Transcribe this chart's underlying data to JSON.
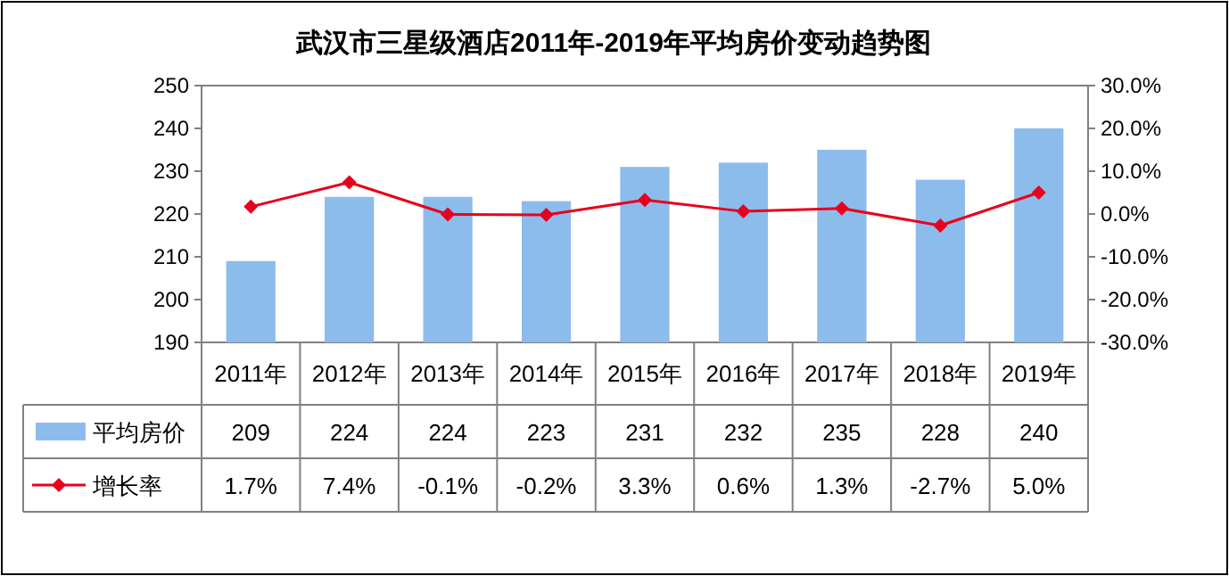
{
  "chart_data": {
    "type": "bar",
    "title": "武汉市三星级酒店2011年-2019年平均房价变动趋势图",
    "categories": [
      "2011年",
      "2012年",
      "2013年",
      "2014年",
      "2015年",
      "2016年",
      "2017年",
      "2018年",
      "2019年"
    ],
    "series": [
      {
        "name": "平均房价",
        "color": "#8cbcec",
        "values": [
          209,
          224,
          224,
          223,
          231,
          232,
          235,
          228,
          240
        ]
      },
      {
        "name": "增长率",
        "type": "line",
        "axis": "y2",
        "color": "#e8001c",
        "marker": "diamond",
        "values": [
          1.7,
          7.4,
          -0.1,
          -0.2,
          3.3,
          0.6,
          1.3,
          -2.7,
          5.0
        ],
        "value_labels": [
          "1.7%",
          "7.4%",
          "-0.1%",
          "-0.2%",
          "3.3%",
          "0.6%",
          "1.3%",
          "-2.7%",
          "5.0%"
        ]
      }
    ],
    "ylim": [
      190,
      250
    ],
    "yticks": [
      190,
      200,
      210,
      220,
      230,
      240,
      250
    ],
    "y2lim": [
      -30,
      30
    ],
    "y2ticks": [
      {
        "value": -30,
        "label": "-30.0%"
      },
      {
        "value": -20,
        "label": "-20.0%"
      },
      {
        "value": -10,
        "label": "-10.0%"
      },
      {
        "value": 0,
        "label": "0.0%"
      },
      {
        "value": 10,
        "label": "10.0%"
      },
      {
        "value": 20,
        "label": "20.0%"
      },
      {
        "value": 30,
        "label": "30.0%"
      }
    ],
    "data_labels": true,
    "legend": "bottom"
  }
}
